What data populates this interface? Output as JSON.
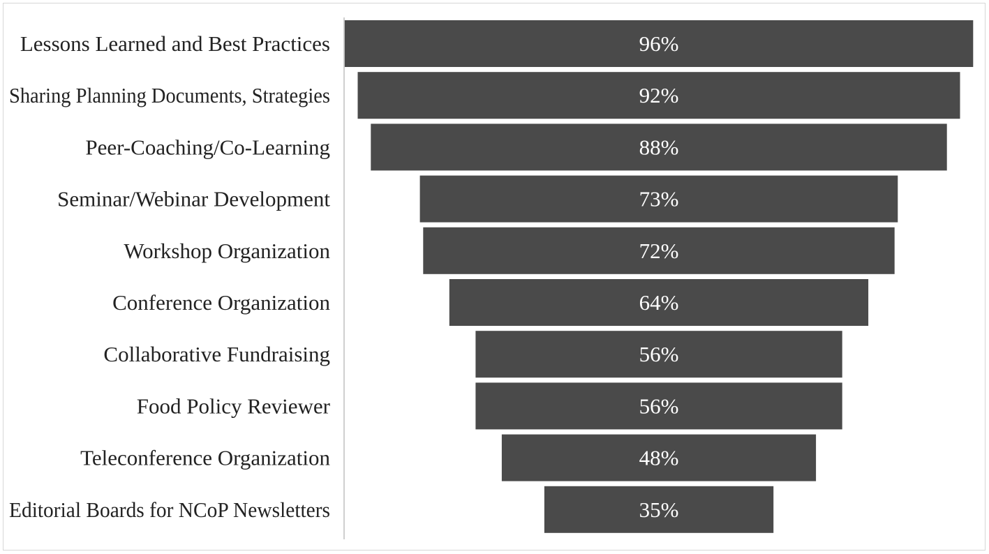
{
  "chart_data": {
    "type": "bar",
    "orientation": "horizontal",
    "style": "funnel",
    "categories": [
      "Lessons Learned and Best Practices",
      "Sharing Planning Documents, Strategies",
      "Peer-Coaching/Co-Learning",
      "Seminar/Webinar Development",
      "Workshop Organization",
      "Conference Organization",
      "Collaborative Fundraising",
      "Food Policy Reviewer",
      "Teleconference Organization",
      "Editorial Boards for NCoP Newsletters"
    ],
    "values": [
      96,
      92,
      88,
      73,
      72,
      64,
      56,
      56,
      48,
      35
    ],
    "value_labels": [
      "96%",
      "92%",
      "88%",
      "73%",
      "72%",
      "64%",
      "56%",
      "56%",
      "48%",
      "35%"
    ],
    "unit": "%",
    "xlim": [
      0,
      100
    ],
    "grid": false,
    "legend": "none",
    "bar_color": "#4a4a4a",
    "label_color": "#ffffff",
    "text_color": "#222222",
    "title": "",
    "xlabel": "",
    "ylabel": ""
  }
}
